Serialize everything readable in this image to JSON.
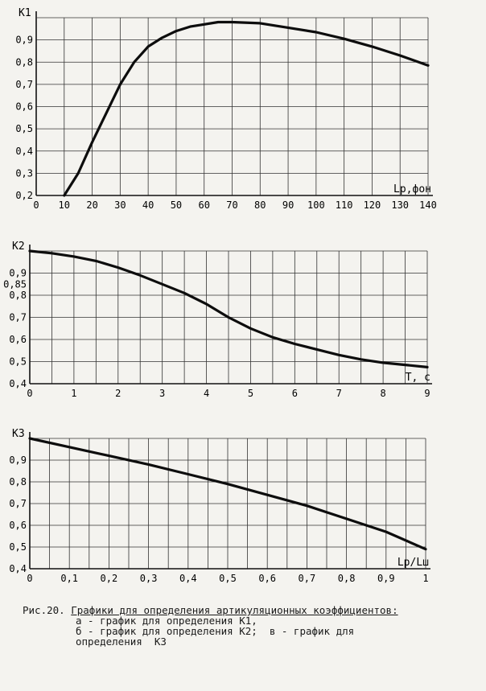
{
  "chart_data": [
    {
      "type": "line",
      "ylabel": "K1",
      "xlabel": "Lp,фон",
      "x_ticks": [
        0,
        10,
        20,
        30,
        40,
        50,
        60,
        70,
        80,
        90,
        100,
        110,
        120,
        130,
        140
      ],
      "y_ticks": [
        "0,2",
        "0,3",
        "0,4",
        "0,5",
        "0,6",
        "0,7",
        "0,8",
        "0,9"
      ],
      "xlim": [
        0,
        140
      ],
      "ylim": [
        0.2,
        1.0
      ],
      "grid": true,
      "x": [
        10,
        15,
        20,
        25,
        30,
        35,
        40,
        45,
        50,
        55,
        60,
        65,
        70,
        80,
        90,
        100,
        110,
        120,
        130,
        140
      ],
      "y": [
        0.2,
        0.3,
        0.44,
        0.57,
        0.7,
        0.8,
        0.87,
        0.91,
        0.94,
        0.96,
        0.97,
        0.98,
        0.98,
        0.975,
        0.955,
        0.935,
        0.905,
        0.87,
        0.83,
        0.785
      ]
    },
    {
      "type": "line",
      "ylabel": "K2",
      "xlabel": "T, c",
      "x_ticks": [
        0,
        1,
        2,
        3,
        4,
        5,
        6,
        7,
        8,
        9
      ],
      "y_ticks": [
        "0,4",
        "0,5",
        "0,6",
        "0,7",
        "0,8",
        "0,85",
        "0,9"
      ],
      "xlim": [
        0,
        9
      ],
      "ylim": [
        0.4,
        1.0
      ],
      "grid": true,
      "x": [
        0,
        0.5,
        1,
        1.5,
        2,
        2.5,
        3,
        3.5,
        4,
        4.5,
        5,
        5.5,
        6,
        6.5,
        7,
        7.5,
        8,
        8.5,
        9
      ],
      "y": [
        1.0,
        0.99,
        0.975,
        0.955,
        0.925,
        0.89,
        0.85,
        0.81,
        0.76,
        0.7,
        0.65,
        0.61,
        0.58,
        0.555,
        0.53,
        0.51,
        0.495,
        0.485,
        0.475
      ]
    },
    {
      "type": "line",
      "ylabel": "K3",
      "xlabel": "Lp/Lш",
      "x_ticks": [
        "0",
        "0,1",
        "0,2",
        "0,3",
        "0,4",
        "0,5",
        "0,6",
        "0,7",
        "0,8",
        "0,9",
        "1"
      ],
      "y_ticks": [
        "0,4",
        "0,5",
        "0,6",
        "0,7",
        "0,8",
        "0,9"
      ],
      "xlim": [
        0,
        1
      ],
      "ylim": [
        0.4,
        1.0
      ],
      "grid": true,
      "x": [
        0,
        0.1,
        0.2,
        0.3,
        0.4,
        0.5,
        0.6,
        0.7,
        0.8,
        0.9,
        1.0
      ],
      "y": [
        1.0,
        0.96,
        0.92,
        0.88,
        0.835,
        0.79,
        0.74,
        0.69,
        0.63,
        0.57,
        0.49
      ]
    }
  ],
  "caption": {
    "line1_prefix": "Рис.20. ",
    "line1_title": "Графики для определения артикуляционных коэффициентов:",
    "line2": "а - график для определения K1,",
    "line3": "б - график для определения K2;  в - график для",
    "line4": "определения  K3"
  }
}
